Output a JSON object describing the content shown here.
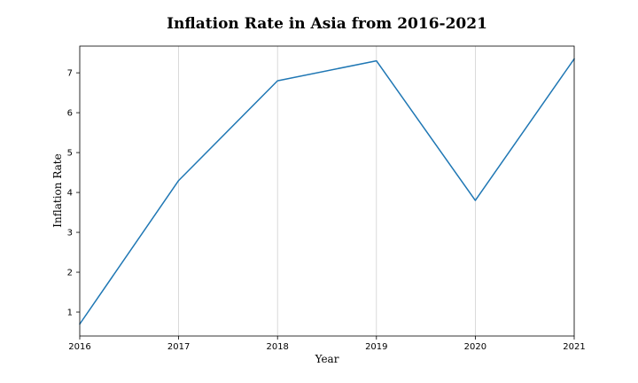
{
  "chart_data": {
    "type": "line",
    "title": "Inflation Rate in Asia from 2016-2021",
    "xlabel": "Year",
    "ylabel": "Inflation Rate",
    "x": [
      "2016",
      "2017",
      "2018",
      "2019",
      "2020",
      "2021"
    ],
    "series": [
      {
        "values": [
          0.7,
          4.3,
          6.8,
          7.3,
          3.8,
          7.35
        ],
        "color": "#1f77b4"
      }
    ],
    "xticks": [
      "2016",
      "2017",
      "2018",
      "2019",
      "2020",
      "2021"
    ],
    "yticks": [
      1,
      2,
      3,
      4,
      5,
      6,
      7
    ],
    "ylim": [
      0.4,
      7.67
    ],
    "grid": "vertical"
  }
}
